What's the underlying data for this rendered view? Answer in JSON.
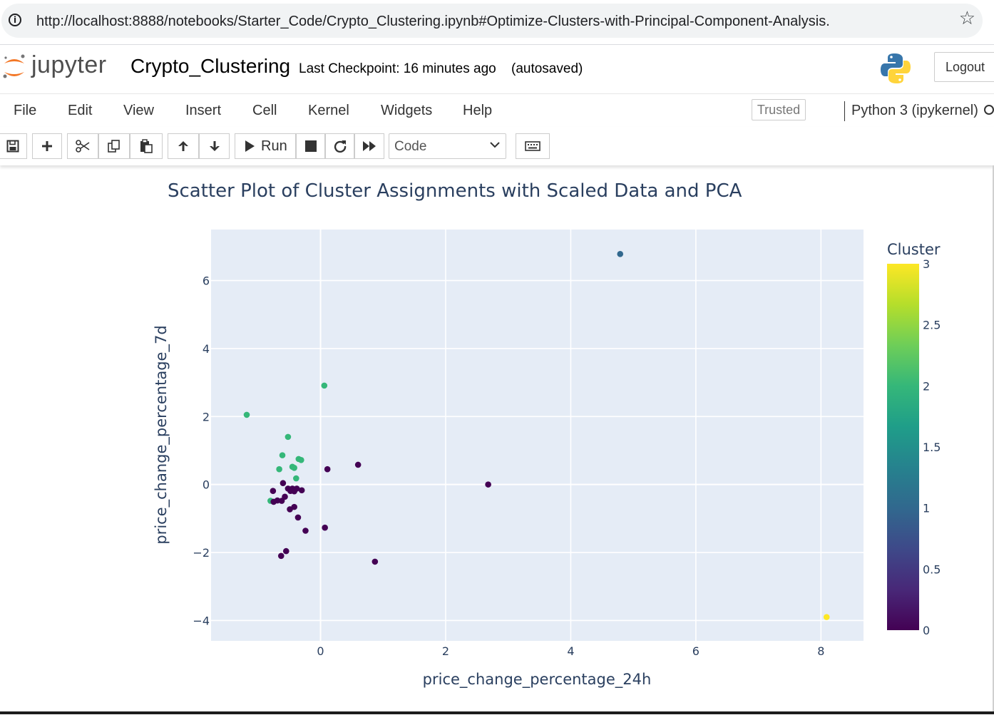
{
  "browser": {
    "url": "http://localhost:8888/notebooks/Starter_Code/Crypto_Clustering.ipynb#Optimize-Clusters-with-Principal-Component-Analysis.",
    "info_icon": "i",
    "star_icon": "☆"
  },
  "header": {
    "logo_text": "jupyter",
    "notebook_name": "Crypto_Clustering",
    "checkpoint": "Last Checkpoint: 16 minutes ago",
    "autosave": "(autosaved)",
    "logout_label": "Logout"
  },
  "menu": {
    "items": [
      "File",
      "Edit",
      "View",
      "Insert",
      "Cell",
      "Kernel",
      "Widgets",
      "Help"
    ],
    "trusted": "Trusted",
    "kernel": "Python 3 (ipykernel)"
  },
  "toolbar": {
    "run_label": "Run",
    "cell_type": "Code"
  },
  "colors": {
    "plot_bg": "#e5ecf6",
    "title": "#2a3f5f",
    "cluster_0": "#440154",
    "cluster_1": "#31688e",
    "cluster_2": "#35b779",
    "cluster_3": "#fde725"
  },
  "chart_data": {
    "type": "scatter",
    "title": "Scatter Plot of Cluster Assignments with Scaled Data and PCA",
    "xlabel": "price_change_percentage_24h",
    "ylabel": "price_change_percentage_7d",
    "xlim": [
      -1.75,
      8.68
    ],
    "ylim": [
      -4.6,
      7.5
    ],
    "xticks": [
      {
        "value": 0,
        "label": "0"
      },
      {
        "value": 2,
        "label": "2"
      },
      {
        "value": 4,
        "label": "4"
      },
      {
        "value": 6,
        "label": "6"
      },
      {
        "value": 8,
        "label": "8"
      }
    ],
    "yticks": [
      {
        "value": -4,
        "label": "−4"
      },
      {
        "value": -2,
        "label": "−2"
      },
      {
        "value": 0,
        "label": "0"
      },
      {
        "value": 2,
        "label": "2"
      },
      {
        "value": 4,
        "label": "4"
      },
      {
        "value": 6,
        "label": "6"
      }
    ],
    "colorbar": {
      "title": "Cluster",
      "range": [
        0,
        3
      ],
      "ticks": [
        "0",
        "0.5",
        "1",
        "1.5",
        "2",
        "2.5",
        "3"
      ]
    },
    "grid": true,
    "points": [
      {
        "x": 4.79,
        "y": 6.78,
        "cluster": 1
      },
      {
        "x": 8.09,
        "y": -3.9,
        "cluster": 3
      },
      {
        "x": 0.06,
        "y": 2.91,
        "cluster": 2
      },
      {
        "x": -1.18,
        "y": 2.05,
        "cluster": 2
      },
      {
        "x": -0.52,
        "y": 1.4,
        "cluster": 2
      },
      {
        "x": -0.61,
        "y": 0.86,
        "cluster": 2
      },
      {
        "x": -0.35,
        "y": 0.75,
        "cluster": 2
      },
      {
        "x": -0.31,
        "y": 0.72,
        "cluster": 2
      },
      {
        "x": -0.45,
        "y": 0.52,
        "cluster": 2
      },
      {
        "x": -0.42,
        "y": 0.49,
        "cluster": 2
      },
      {
        "x": -0.66,
        "y": 0.45,
        "cluster": 2
      },
      {
        "x": -0.39,
        "y": 0.18,
        "cluster": 2
      },
      {
        "x": -0.8,
        "y": -0.48,
        "cluster": 2
      },
      {
        "x": 0.11,
        "y": 0.45,
        "cluster": 0
      },
      {
        "x": 0.6,
        "y": 0.58,
        "cluster": 0
      },
      {
        "x": 2.68,
        "y": 0.0,
        "cluster": 0
      },
      {
        "x": -0.6,
        "y": 0.04,
        "cluster": 0
      },
      {
        "x": -0.52,
        "y": -0.12,
        "cluster": 0
      },
      {
        "x": -0.45,
        "y": -0.12,
        "cluster": 0
      },
      {
        "x": -0.38,
        "y": -0.12,
        "cluster": 0
      },
      {
        "x": -0.3,
        "y": -0.17,
        "cluster": 0
      },
      {
        "x": -0.48,
        "y": -0.19,
        "cluster": 0
      },
      {
        "x": -0.42,
        "y": -0.2,
        "cluster": 0
      },
      {
        "x": -0.76,
        "y": -0.19,
        "cluster": 0
      },
      {
        "x": -0.57,
        "y": -0.36,
        "cluster": 0
      },
      {
        "x": -0.69,
        "y": -0.47,
        "cluster": 0
      },
      {
        "x": -0.62,
        "y": -0.48,
        "cluster": 0
      },
      {
        "x": -0.75,
        "y": -0.51,
        "cluster": 0
      },
      {
        "x": -0.42,
        "y": -0.66,
        "cluster": 0
      },
      {
        "x": -0.49,
        "y": -0.73,
        "cluster": 0
      },
      {
        "x": -0.36,
        "y": -0.97,
        "cluster": 0
      },
      {
        "x": 0.07,
        "y": -1.27,
        "cluster": 0
      },
      {
        "x": -0.24,
        "y": -1.36,
        "cluster": 0
      },
      {
        "x": -0.55,
        "y": -1.96,
        "cluster": 0
      },
      {
        "x": -0.63,
        "y": -2.1,
        "cluster": 0
      },
      {
        "x": 0.87,
        "y": -2.27,
        "cluster": 0
      }
    ]
  }
}
